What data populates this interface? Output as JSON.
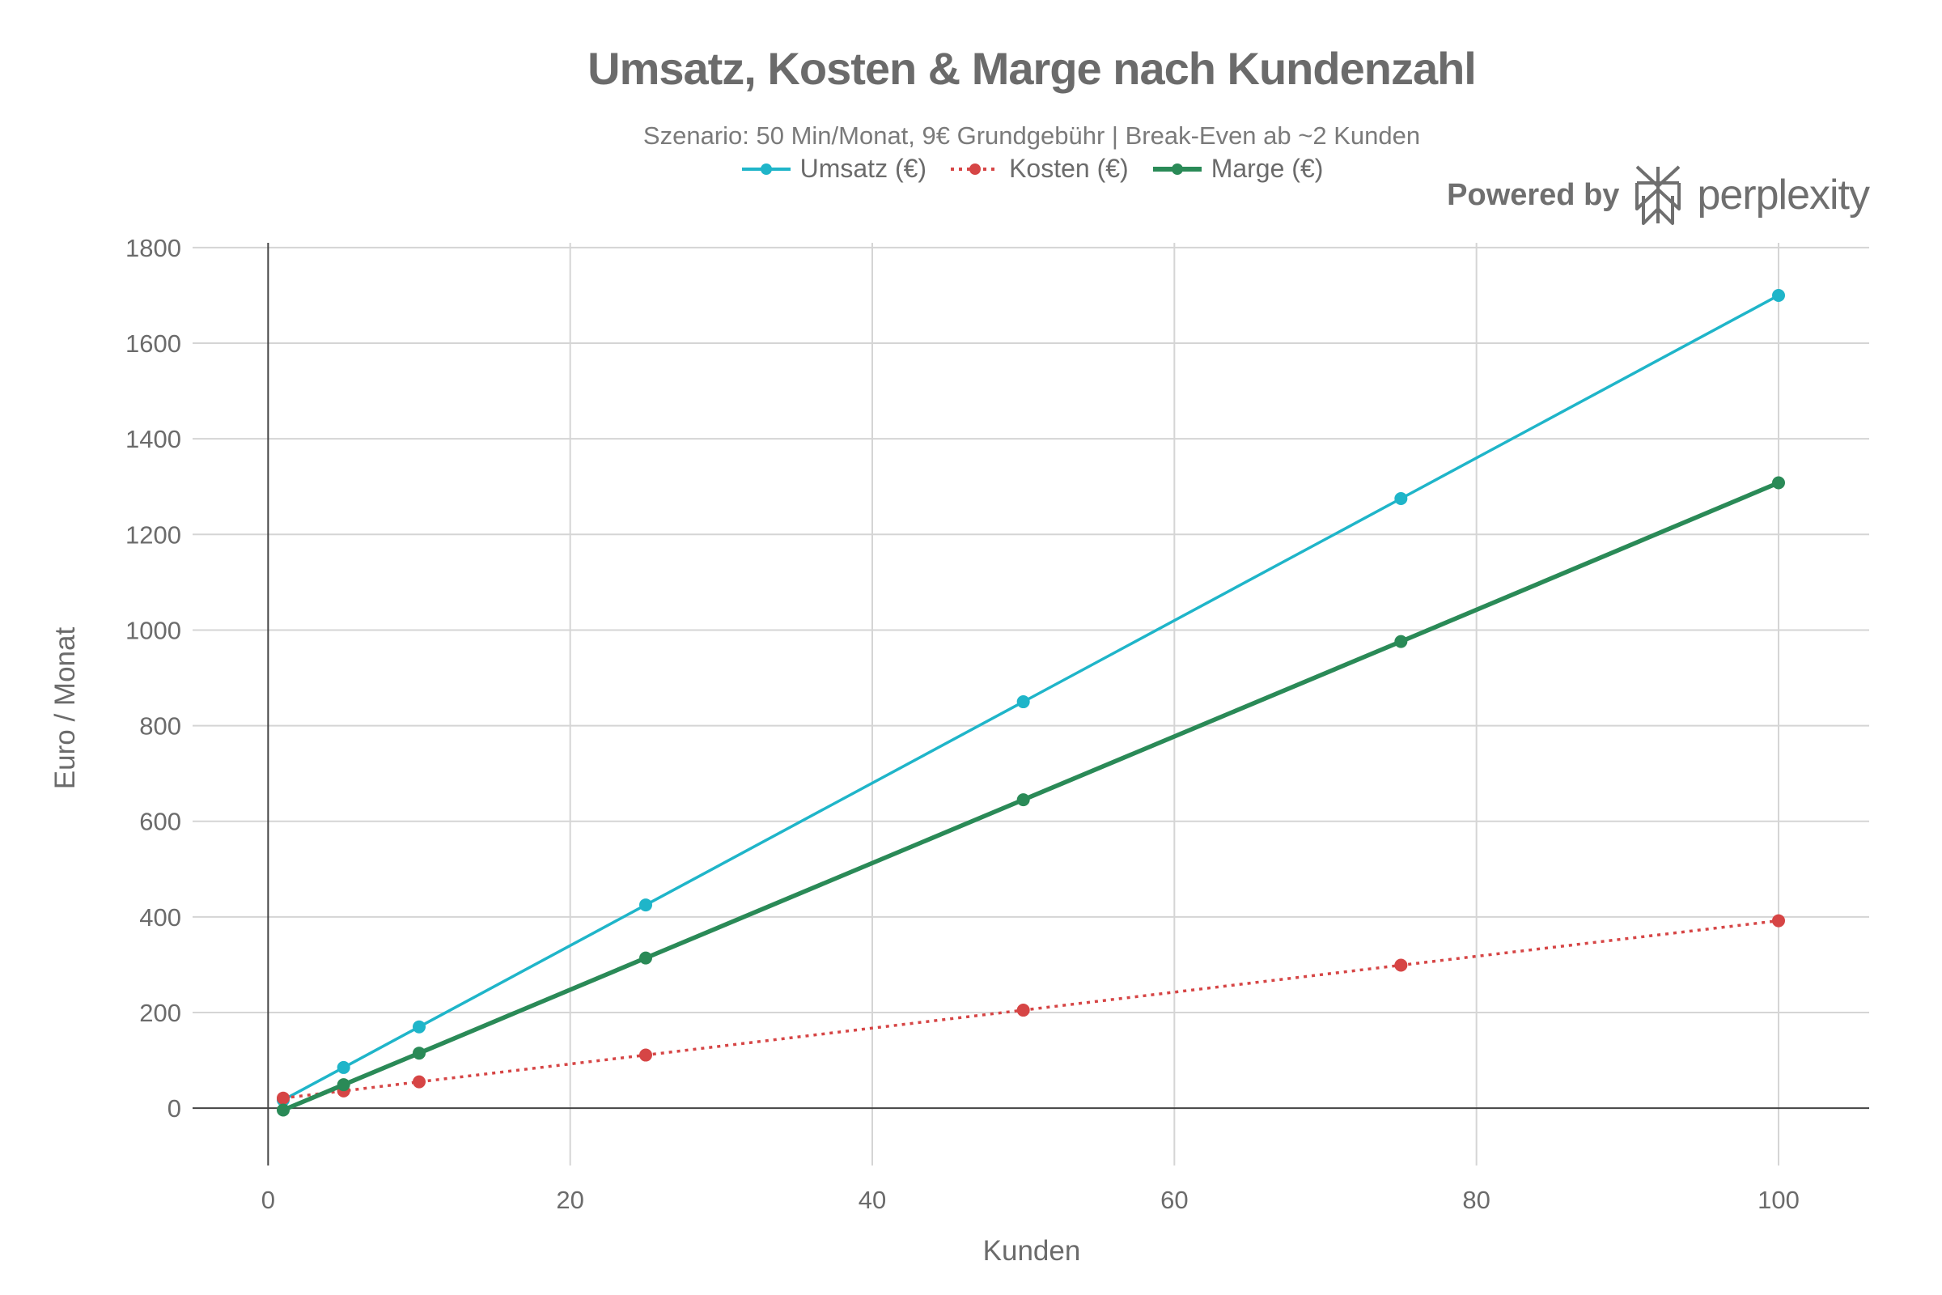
{
  "chart_data": {
    "type": "line",
    "title": "Umsatz, Kosten & Marge nach Kundenzahl",
    "subtitle": "Szenario: 50 Min/Monat, 9€ Grundgebühr | Break-Even ab ~2 Kunden",
    "xlabel": "Kunden",
    "ylabel": "Euro / Monat",
    "x": [
      1,
      5,
      10,
      25,
      50,
      75,
      100
    ],
    "xlim": [
      -5,
      106
    ],
    "ylim": [
      -120,
      1810
    ],
    "xticks": [
      0,
      20,
      40,
      60,
      80,
      100
    ],
    "yticks": [
      0,
      200,
      400,
      600,
      800,
      1000,
      1200,
      1400,
      1600,
      1800
    ],
    "grid": true,
    "legend_position": "top-center",
    "series": [
      {
        "name": "Umsatz (€)",
        "color": "#1fb5c9",
        "style": "solid",
        "values": [
          17,
          85,
          170,
          425,
          850,
          1275,
          1700
        ]
      },
      {
        "name": "Kosten (€)",
        "color": "#d64545",
        "style": "dotted",
        "values": [
          21,
          36,
          55,
          111,
          205,
          299,
          392
        ]
      },
      {
        "name": "Marge (€)",
        "color": "#2a8a57",
        "style": "solid-thick",
        "values": [
          -4,
          49,
          115,
          314,
          645,
          976,
          1308
        ]
      }
    ]
  },
  "branding": {
    "prefix": "Powered by",
    "name": "perplexity",
    "logo_icon": "perplexity-logo-icon"
  }
}
